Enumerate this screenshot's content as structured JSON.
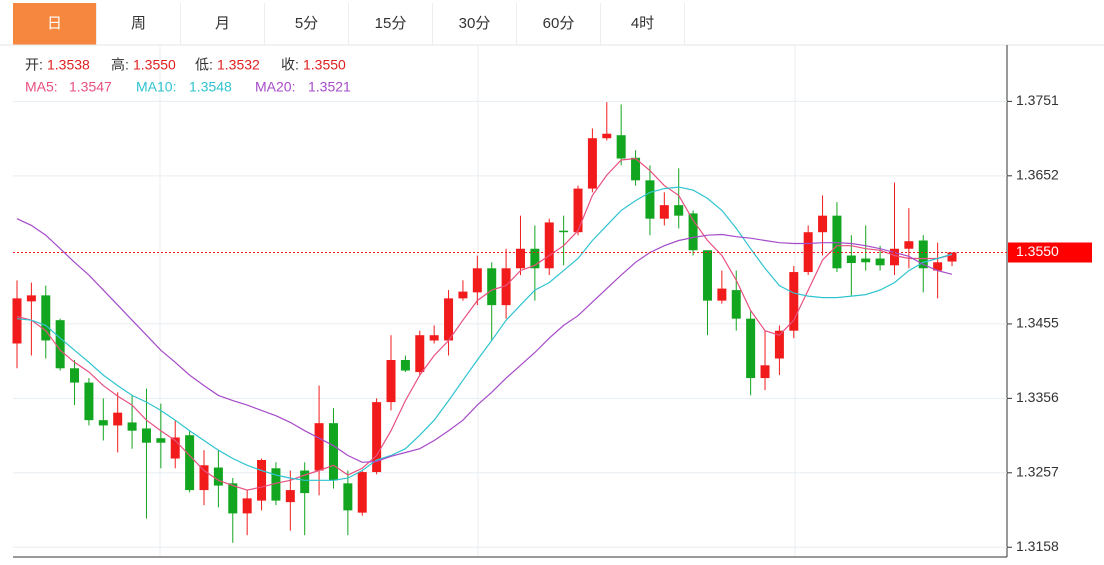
{
  "tabs": {
    "items": [
      "日",
      "周",
      "月",
      "5分",
      "15分",
      "30分",
      "60分",
      "4时"
    ],
    "active": 0
  },
  "chart_data": {
    "type": "candlestick",
    "ohlc_labels": [
      "开:",
      "高:",
      "低:",
      "收:"
    ],
    "value_labels": {
      "open": "1.3538",
      "high": "1.3550",
      "low": "1.3532",
      "close": "1.3550"
    },
    "up_color": "#f21b1b",
    "down_color": "#12a51f",
    "open": [
      1.3429,
      1.3485,
      1.3493,
      1.346,
      1.3396,
      1.3377,
      1.3327,
      1.332,
      1.3324,
      1.3316,
      1.3303,
      1.3276,
      1.3307,
      1.3234,
      1.3264,
      1.3243,
      1.3203,
      1.322,
      1.3263,
      1.3218,
      1.326,
      1.326,
      1.3323,
      1.3243,
      1.3204,
      1.3258,
      1.3351,
      1.3407,
      1.3391,
      1.3433,
      1.3433,
      1.3489,
      1.3497,
      1.3529,
      1.348,
      1.3529,
      1.3555,
      1.3529,
      1.3579,
      1.3577,
      1.3635,
      1.3702,
      1.3706,
      1.3676,
      1.3646,
      1.3595,
      1.3613,
      1.3602,
      1.3553,
      1.3486,
      1.35,
      1.3462,
      1.3383,
      1.3409,
      1.3446,
      1.3524,
      1.3577,
      1.3599,
      1.3546,
      1.3542,
      1.3542,
      1.3533,
      1.3555,
      1.3566,
      1.3526,
      1.3538
    ],
    "high": [
      1.3513,
      1.351,
      1.3506,
      1.3462,
      1.3407,
      1.3383,
      1.3356,
      1.3364,
      1.336,
      1.3369,
      1.3349,
      1.3327,
      1.3313,
      1.3287,
      1.3287,
      1.325,
      1.3234,
      1.3276,
      1.3271,
      1.326,
      1.3271,
      1.3373,
      1.3343,
      1.326,
      1.326,
      1.3356,
      1.344,
      1.3413,
      1.3446,
      1.3453,
      1.35,
      1.3513,
      1.3546,
      1.3537,
      1.3555,
      1.3599,
      1.3586,
      1.3595,
      1.3599,
      1.3639,
      1.3715,
      1.375,
      1.3747,
      1.3686,
      1.3666,
      1.363,
      1.3662,
      1.3606,
      1.3553,
      1.3526,
      1.3526,
      1.3473,
      1.3446,
      1.3453,
      1.3532,
      1.3586,
      1.3626,
      1.3617,
      1.3573,
      1.3586,
      1.3559,
      1.3643,
      1.3609,
      1.3573,
      1.3563,
      1.355
    ],
    "low": [
      1.3396,
      1.3413,
      1.3409,
      1.3393,
      1.3347,
      1.332,
      1.33,
      1.3284,
      1.3289,
      1.3196,
      1.3263,
      1.3263,
      1.3231,
      1.3214,
      1.3211,
      1.3164,
      1.3174,
      1.3207,
      1.3214,
      1.318,
      1.3174,
      1.3227,
      1.3236,
      1.3174,
      1.32,
      1.3255,
      1.334,
      1.3391,
      1.3387,
      1.3429,
      1.3413,
      1.3486,
      1.348,
      1.3433,
      1.3462,
      1.352,
      1.3486,
      1.352,
      1.3533,
      1.3573,
      1.363,
      1.3699,
      1.3666,
      1.3639,
      1.3573,
      1.3586,
      1.3582,
      1.3546,
      1.344,
      1.3482,
      1.3446,
      1.336,
      1.3367,
      1.3387,
      1.3436,
      1.352,
      1.3546,
      1.3524,
      1.3493,
      1.3526,
      1.3526,
      1.352,
      1.3529,
      1.3497,
      1.3489,
      1.3532
    ],
    "close": [
      1.3489,
      1.3493,
      1.3433,
      1.3396,
      1.3377,
      1.3327,
      1.332,
      1.3337,
      1.3313,
      1.3297,
      1.3297,
      1.3304,
      1.3234,
      1.3267,
      1.324,
      1.3203,
      1.3223,
      1.3274,
      1.322,
      1.3234,
      1.323,
      1.3323,
      1.3247,
      1.3207,
      1.3258,
      1.3351,
      1.3407,
      1.3393,
      1.344,
      1.344,
      1.3489,
      1.3498,
      1.3529,
      1.348,
      1.3529,
      1.3555,
      1.3529,
      1.359,
      1.3577,
      1.3635,
      1.3702,
      1.3708,
      1.3675,
      1.3646,
      1.3595,
      1.3613,
      1.3599,
      1.3553,
      1.3486,
      1.3502,
      1.3462,
      1.3383,
      1.34,
      1.3446,
      1.3524,
      1.3577,
      1.3599,
      1.3529,
      1.3536,
      1.3537,
      1.3533,
      1.3555,
      1.3565,
      1.3529,
      1.3537,
      1.355
    ],
    "series": [
      {
        "name": "MA5:",
        "color": "#e8507f",
        "values": [
          1.3465,
          1.346,
          1.3446,
          1.342,
          1.3404,
          1.3391,
          1.3373,
          1.3359,
          1.3347,
          1.3327,
          1.3313,
          1.33,
          1.328,
          1.326,
          1.3247,
          1.324,
          1.3234,
          1.3238,
          1.3243,
          1.3247,
          1.3254,
          1.326,
          1.3267,
          1.3254,
          1.3263,
          1.328,
          1.3313,
          1.3353,
          1.3387,
          1.3413,
          1.3433,
          1.346,
          1.3486,
          1.35,
          1.3506,
          1.3526,
          1.3533,
          1.3546,
          1.3559,
          1.3579,
          1.3626,
          1.3653,
          1.3673,
          1.3675,
          1.3659,
          1.3639,
          1.3626,
          1.3593,
          1.3566,
          1.3546,
          1.3513,
          1.3473,
          1.3446,
          1.344,
          1.346,
          1.35,
          1.354,
          1.3559,
          1.3559,
          1.3555,
          1.3553,
          1.3546,
          1.3542,
          1.3542,
          1.3542,
          1.3547
        ]
      },
      {
        "name": "MA10:",
        "color": "#2fc3cf",
        "values": [
          1.3462,
          1.346,
          1.3453,
          1.3436,
          1.342,
          1.3404,
          1.3387,
          1.3373,
          1.336,
          1.3351,
          1.334,
          1.3327,
          1.3313,
          1.33,
          1.3287,
          1.3276,
          1.3267,
          1.326,
          1.3254,
          1.325,
          1.3247,
          1.3247,
          1.3247,
          1.325,
          1.326,
          1.3274,
          1.328,
          1.3289,
          1.3307,
          1.3327,
          1.3353,
          1.338,
          1.3407,
          1.3433,
          1.346,
          1.348,
          1.35,
          1.351,
          1.3526,
          1.3542,
          1.3566,
          1.3586,
          1.3606,
          1.3619,
          1.363,
          1.3635,
          1.3637,
          1.3633,
          1.3622,
          1.3606,
          1.3582,
          1.3555,
          1.3529,
          1.3506,
          1.3496,
          1.3492,
          1.349,
          1.349,
          1.3492,
          1.3494,
          1.35,
          1.351,
          1.3526,
          1.3537,
          1.3542,
          1.3548
        ]
      },
      {
        "name": "MA20:",
        "color": "#a64bc9",
        "values": [
          1.3595,
          1.3586,
          1.3573,
          1.3555,
          1.3537,
          1.352,
          1.35,
          1.348,
          1.346,
          1.344,
          1.342,
          1.3404,
          1.3387,
          1.3373,
          1.336,
          1.3353,
          1.3347,
          1.334,
          1.3333,
          1.3324,
          1.3313,
          1.3303,
          1.3293,
          1.328,
          1.3271,
          1.3272,
          1.3279,
          1.3284,
          1.3289,
          1.33,
          1.3313,
          1.3327,
          1.3347,
          1.3364,
          1.3383,
          1.34,
          1.3417,
          1.3436,
          1.3453,
          1.3466,
          1.3484,
          1.3502,
          1.352,
          1.3537,
          1.355,
          1.3559,
          1.3566,
          1.357,
          1.3573,
          1.3574,
          1.3571,
          1.3569,
          1.3566,
          1.3563,
          1.3562,
          1.3562,
          1.3563,
          1.3563,
          1.3562,
          1.3559,
          1.3555,
          1.355,
          1.3545,
          1.3534,
          1.3526,
          1.3521
        ]
      }
    ],
    "ylim": [
      1.3145,
      1.3826
    ],
    "yticks": [
      1.3158,
      1.3257,
      1.3356,
      1.3455,
      1.3652,
      1.3751
    ],
    "grid": true,
    "last_price_line": true
  }
}
